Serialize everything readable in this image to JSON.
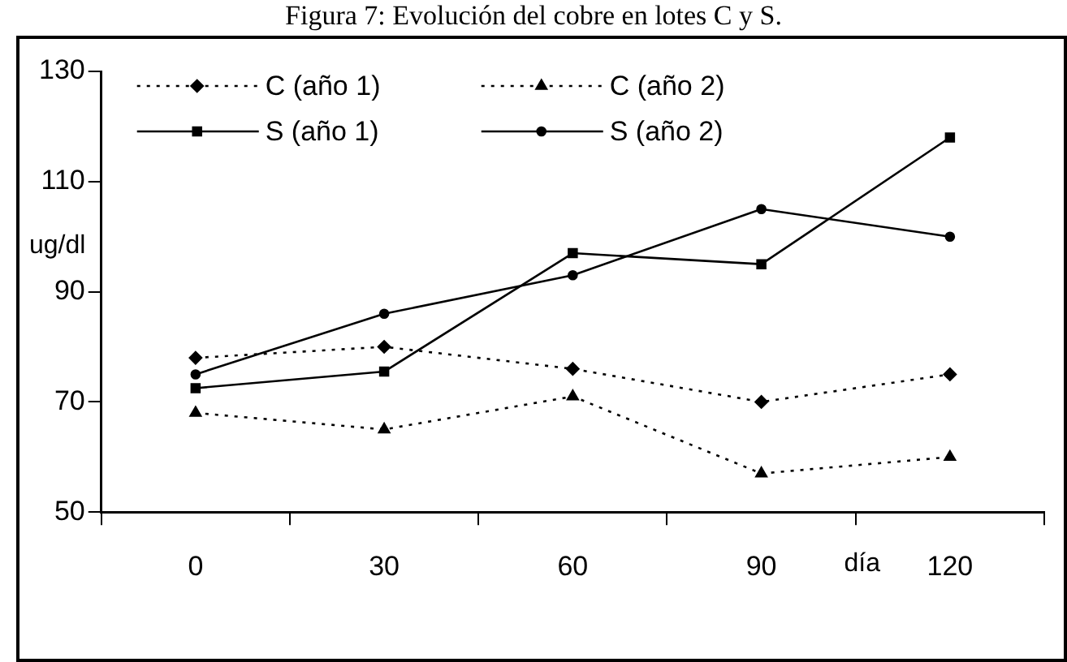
{
  "chart_data": {
    "type": "line",
    "title": "Figura 7: Evolución del cobre en lotes C y S.",
    "ylabel": "ug/dl",
    "annotations": [
      "día"
    ],
    "categories": [
      "0",
      "30",
      "60",
      "90",
      "120"
    ],
    "series": [
      {
        "name": "C (año 1)",
        "color": "#000000",
        "marker": "diamond",
        "line_style": "dotted",
        "values": [
          78,
          80,
          76,
          70,
          75
        ]
      },
      {
        "name": "S (año 1)",
        "color": "#000000",
        "marker": "square",
        "line_style": "solid",
        "values": [
          72.5,
          75.5,
          97,
          95,
          118
        ]
      },
      {
        "name": "C (año 2)",
        "color": "#000000",
        "marker": "triangle",
        "line_style": "dotted",
        "values": [
          68,
          65,
          71,
          57,
          60
        ]
      },
      {
        "name": "S (año 2)",
        "color": "#000000",
        "marker": "circle",
        "line_style": "solid",
        "values": [
          75,
          86,
          93,
          105,
          100
        ]
      }
    ],
    "ylim": [
      50,
      130
    ],
    "yticks": [
      50,
      70,
      90,
      110,
      130
    ],
    "grid": false,
    "legend": "top"
  }
}
